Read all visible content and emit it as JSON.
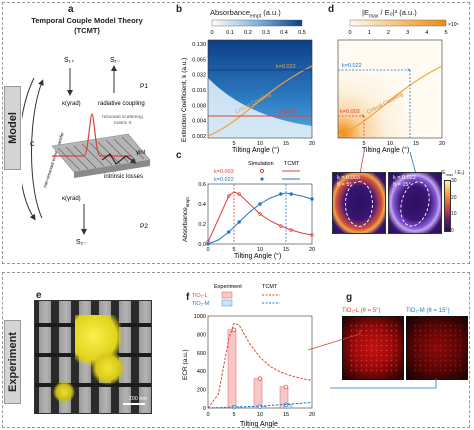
{
  "sections": {
    "model": "Model",
    "experiment": "Experiment"
  },
  "panel_labels": {
    "a": "a",
    "b": "b",
    "c": "c",
    "d": "d",
    "e": "e",
    "f": "f",
    "g": "g"
  },
  "panel_a": {
    "title_line1": "Temporal Couple  Model Theory",
    "title_line2": "(TCMT)",
    "s_plus_top": "S₁₊",
    "s_minus_top": "S₁₋",
    "s_minus_bottom": "S₂₋",
    "p1": "P1",
    "p2": "P2",
    "kappa_top": "κ(γrad)",
    "kappa_bottom": "κ(γrad)",
    "radiative": "radiative coupling",
    "resonant": "resonant scattering",
    "matrix": "matrix  S",
    "intrinsic": "intrinsic losses",
    "gamma_int": "γint",
    "c_label": "C",
    "transfer": "non-resonant energy transfer"
  },
  "panel_b": {
    "colorbar_title": "Absorbance",
    "colorbar_sub": "empt",
    "colorbar_unit": " (a.u.)",
    "colorbar_ticks": [
      "0",
      "0.1",
      "0.2",
      "0.3",
      "0.4",
      "0.5"
    ],
    "ylabel": "Extinction Coefficient, k (a.u.)",
    "xlabel": "Tilting Angle (°)",
    "yticks": [
      "0.130",
      "0.065",
      "0.032",
      "0.016",
      "0.008",
      "0.004",
      "0.002"
    ],
    "xticks": [
      "5",
      "10",
      "15",
      "20"
    ],
    "k_high": "k=0.022",
    "k_low": "k=0.003",
    "curve_label": "Critical Coupling"
  },
  "panel_c": {
    "legend_sim": "Simulation",
    "legend_tcmt": "TCMT",
    "k1": "k=0.003",
    "k2": "k=0.022",
    "ylabel": "Absorbance",
    "ylabel_sub": "empt",
    "xlabel": "Tilting Angle (°)",
    "xticks": [
      "0",
      "5",
      "10",
      "15",
      "20"
    ],
    "yticks": [
      "0.0",
      "0.2",
      "0.4",
      "0.6"
    ]
  },
  "panel_d": {
    "colorbar_title": "|E",
    "colorbar_sub": "max",
    "colorbar_rest": " / E₀|² (a.u.)",
    "colorbar_ticks": [
      "0",
      "1",
      "2",
      "3",
      "4",
      "5"
    ],
    "colorbar_exp": "×10⁵",
    "xlabel": "Tilting Angle (°)",
    "xticks": [
      "5",
      "10",
      "15",
      "20"
    ],
    "k_high": "k=0.022",
    "k_low": "k=0.003",
    "curve_label": "Critical Coupling",
    "map1_k": "k = 0.003",
    "map1_t": "θ = 5°",
    "map2_k": "k = 0.022",
    "map2_t": "θ = 15°",
    "map_cb_title": "|E",
    "map_cb_sub": "max",
    "map_cb_rest": " / E₀|",
    "map_cb_ticks": [
      "30",
      "20",
      "10",
      "0"
    ]
  },
  "panel_e": {
    "scalebar": "200 nm"
  },
  "panel_f": {
    "legend_exp": "Experiment",
    "legend_tcmt": "TCMT",
    "series1": "TiO₂-L",
    "series2": "TiO₂-M",
    "ylabel": "ECR (a.u.)",
    "xlabel": "Tilting Angle",
    "yticks": [
      "0",
      "200",
      "400",
      "600",
      "800",
      "1000"
    ],
    "xticks": [
      "0",
      "5",
      "10",
      "15",
      "20"
    ]
  },
  "panel_g": {
    "img1": "TiO₂-L (θ = 5°)",
    "img2": "TiO₂-M (θ = 15°)"
  },
  "colors": {
    "red": "#e0403a",
    "blue": "#1f78c8",
    "orange": "#f3a33a",
    "navy": "#17408b"
  },
  "chart_data": [
    {
      "type": "heatmap",
      "panel": "b",
      "xlabel": "Tilting Angle (°)",
      "ylabel": "Extinction Coefficient, k (a.u.)",
      "xlim": [
        0,
        20
      ],
      "yticks": [
        0.13,
        0.065,
        0.032,
        0.016,
        0.008,
        0.004,
        0.002
      ],
      "colorbar_range": [
        0,
        0.5
      ],
      "critical_coupling_curve": {
        "x": [
          0.5,
          3,
          6,
          9,
          12,
          15,
          18,
          20
        ],
        "y": [
          0.0015,
          0.003,
          0.005,
          0.008,
          0.012,
          0.018,
          0.026,
          0.032
        ]
      },
      "markers": [
        {
          "label": "k=0.022",
          "y": 0.022
        },
        {
          "label": "k=0.003",
          "y": 0.003
        }
      ]
    },
    {
      "type": "line",
      "panel": "c",
      "xlabel": "Tilting Angle (°)",
      "ylabel": "Absorbance (empt)",
      "xlim": [
        0,
        20
      ],
      "ylim": [
        0,
        0.6
      ],
      "x": [
        0,
        2,
        4,
        5,
        6,
        8,
        10,
        12,
        14,
        15,
        16,
        18,
        20
      ],
      "series": [
        {
          "name": "k=0.003",
          "values": [
            0.02,
            0.25,
            0.48,
            0.52,
            0.5,
            0.4,
            0.3,
            0.23,
            0.18,
            0.16,
            0.14,
            0.11,
            0.09
          ]
        },
        {
          "name": "k=0.022",
          "values": [
            0.0,
            0.04,
            0.12,
            0.17,
            0.22,
            0.32,
            0.4,
            0.46,
            0.5,
            0.51,
            0.5,
            0.48,
            0.45
          ]
        }
      ],
      "vlines": [
        5,
        15
      ]
    },
    {
      "type": "heatmap",
      "panel": "d",
      "xlabel": "Tilting Angle (°)",
      "xlim": [
        0,
        20
      ],
      "colorbar_range": [
        0,
        5
      ],
      "colorbar_unit": "×10⁵",
      "markers": [
        {
          "label": "k=0.022",
          "x": 15
        },
        {
          "label": "k=0.003",
          "x": 5
        }
      ]
    },
    {
      "type": "bar",
      "panel": "f",
      "xlabel": "Tilting Angle",
      "ylabel": "ECR (a.u.)",
      "xlim": [
        0,
        20
      ],
      "ylim": [
        0,
        1000
      ],
      "series": [
        {
          "name": "TiO₂-L",
          "x": [
            5,
            10,
            15
          ],
          "values": [
            850,
            320,
            230
          ]
        },
        {
          "name": "TiO₂-M",
          "x": [
            5,
            10,
            15
          ],
          "values": [
            10,
            15,
            35
          ]
        }
      ],
      "tcmt": [
        {
          "name": "TiO₂-L",
          "x": [
            0,
            2,
            4,
            5,
            6,
            8,
            10,
            12,
            14,
            16,
            18,
            20
          ],
          "values": [
            0,
            150,
            750,
            920,
            900,
            700,
            550,
            450,
            390,
            350,
            320,
            300
          ]
        },
        {
          "name": "TiO₂-M",
          "x": [
            0,
            5,
            10,
            15,
            20
          ],
          "values": [
            0,
            10,
            20,
            40,
            60
          ]
        }
      ]
    }
  ]
}
